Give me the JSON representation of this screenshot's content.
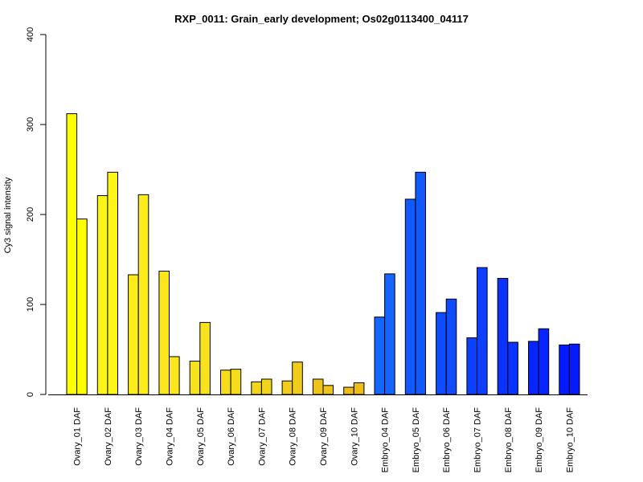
{
  "chart_data": {
    "type": "bar",
    "title": "RXP_0011: Grain_early development; Os02g0113400_04117",
    "xlabel": "",
    "ylabel": "Cy3 signal intensity",
    "ylim": [
      0,
      400
    ],
    "yticks": [
      0,
      100,
      200,
      300,
      400
    ],
    "grid": false,
    "categories": [
      "Ovary_01 DAF",
      "Ovary_02 DAF",
      "Ovary_03 DAF",
      "Ovary_04 DAF",
      "Ovary_05 DAF",
      "Ovary_06 DAF",
      "Ovary_07 DAF",
      "Ovary_08 DAF",
      "Ovary_09 DAF",
      "Ovary_10 DAF",
      "Embryo_04 DAF",
      "Embryo_05 DAF",
      "Embryo_06 DAF",
      "Embryo_07 DAF",
      "Embryo_08 DAF",
      "Embryo_09 DAF",
      "Embryo_10 DAF"
    ],
    "colors": [
      "#ffff00",
      "#fdf515",
      "#fbec1a",
      "#f9e61c",
      "#f7e31c",
      "#f5dc1c",
      "#f3d41c",
      "#f0cc1c",
      "#eec41b",
      "#ecbc1a",
      "#1565ff",
      "#1258ff",
      "#0f4cff",
      "#0c3fff",
      "#0a33ff",
      "#0726ff",
      "#041aff"
    ],
    "series": [
      {
        "values": [
          312,
          221,
          133,
          137,
          37,
          27,
          14,
          15,
          17,
          8,
          86,
          217,
          91,
          63,
          129,
          59,
          55
        ]
      },
      {
        "values": [
          195,
          247,
          222,
          42,
          80,
          28,
          17,
          36,
          10,
          13,
          134,
          247,
          106,
          141,
          58,
          73,
          56
        ]
      }
    ]
  }
}
